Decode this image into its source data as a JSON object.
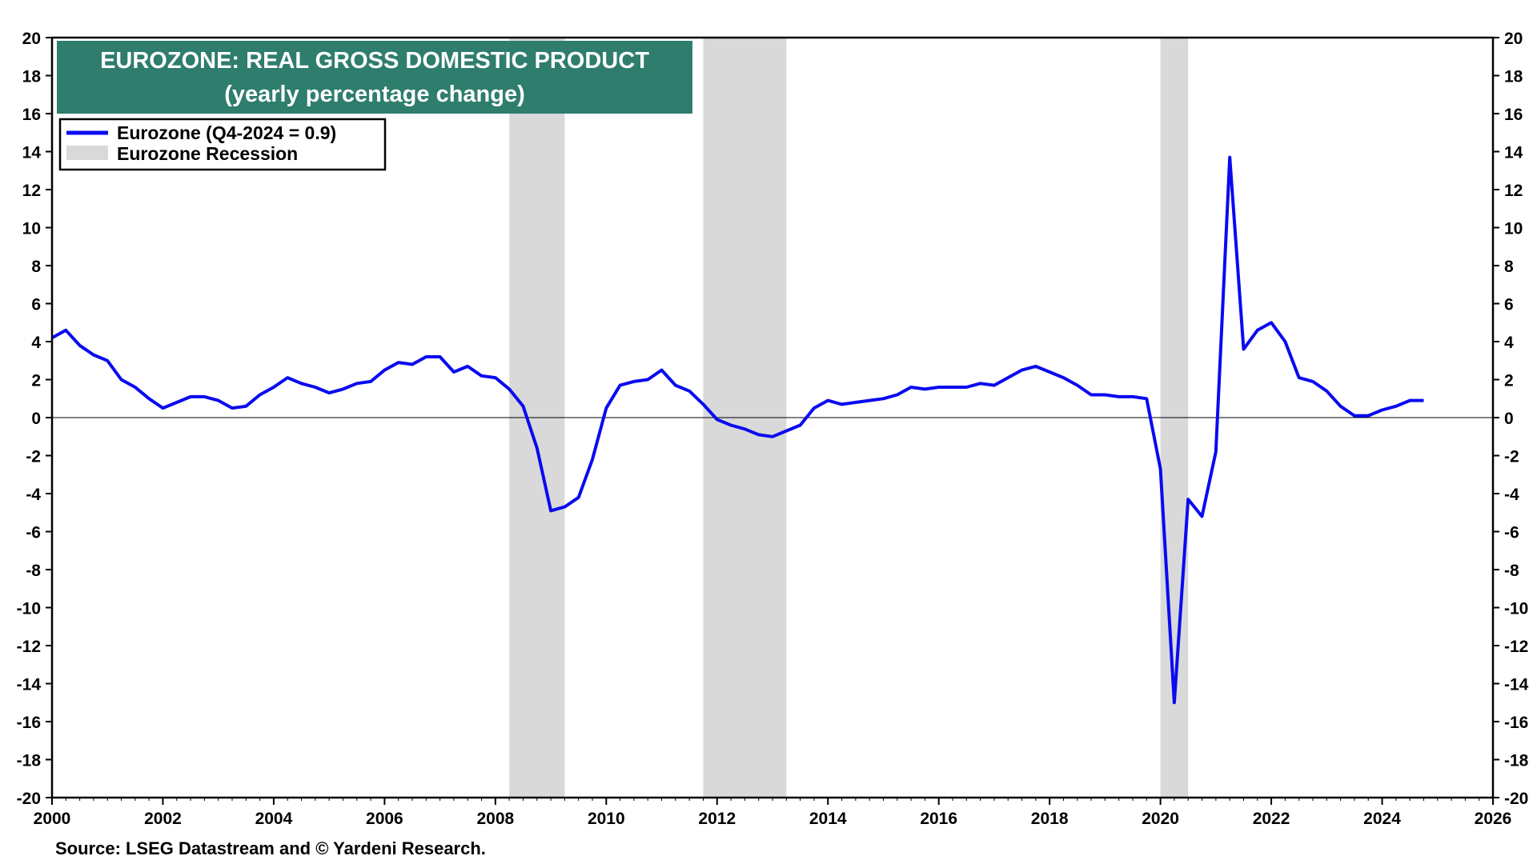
{
  "chart_data": {
    "type": "line",
    "title": "EUROZONE: REAL GROSS DOMESTIC PRODUCT",
    "subtitle": "(yearly percentage change)",
    "source": "Source: LSEG Datastream and © Yardeni Research.",
    "xlim": [
      2000,
      2026
    ],
    "ylim": [
      -20,
      20
    ],
    "x_ticks": [
      2000,
      2002,
      2004,
      2006,
      2008,
      2010,
      2012,
      2014,
      2016,
      2018,
      2020,
      2022,
      2024,
      2026
    ],
    "y_ticks": [
      -20,
      -18,
      -16,
      -14,
      -12,
      -10,
      -8,
      -6,
      -4,
      -2,
      0,
      2,
      4,
      6,
      8,
      10,
      12,
      14,
      16,
      18,
      20
    ],
    "zero_line": true,
    "grid": false,
    "legend": {
      "placement": "top-left",
      "entries": [
        {
          "label": "Eurozone (Q4-2024 = 0.9)",
          "kind": "line",
          "color": "#0a0af0"
        },
        {
          "label": "Eurozone Recession",
          "kind": "band",
          "color": "#d9d9d9"
        }
      ]
    },
    "colors": {
      "series": "#0a0af0",
      "recession": "#d9d9d9",
      "title_bg": "#2e7d6d",
      "title_text": "#ffffff"
    },
    "recessions": [
      {
        "start": 2008.25,
        "end": 2009.25
      },
      {
        "start": 2011.75,
        "end": 2013.25
      },
      {
        "start": 2020.0,
        "end": 2020.5
      }
    ],
    "series": [
      {
        "name": "Eurozone (Q4-2024 = 0.9)",
        "x": [
          2000.0,
          2000.25,
          2000.5,
          2000.75,
          2001.0,
          2001.25,
          2001.5,
          2001.75,
          2002.0,
          2002.25,
          2002.5,
          2002.75,
          2003.0,
          2003.25,
          2003.5,
          2003.75,
          2004.0,
          2004.25,
          2004.5,
          2004.75,
          2005.0,
          2005.25,
          2005.5,
          2005.75,
          2006.0,
          2006.25,
          2006.5,
          2006.75,
          2007.0,
          2007.25,
          2007.5,
          2007.75,
          2008.0,
          2008.25,
          2008.5,
          2008.75,
          2009.0,
          2009.25,
          2009.5,
          2009.75,
          2010.0,
          2010.25,
          2010.5,
          2010.75,
          2011.0,
          2011.25,
          2011.5,
          2011.75,
          2012.0,
          2012.25,
          2012.5,
          2012.75,
          2013.0,
          2013.25,
          2013.5,
          2013.75,
          2014.0,
          2014.25,
          2014.5,
          2014.75,
          2015.0,
          2015.25,
          2015.5,
          2015.75,
          2016.0,
          2016.25,
          2016.5,
          2016.75,
          2017.0,
          2017.25,
          2017.5,
          2017.75,
          2018.0,
          2018.25,
          2018.5,
          2018.75,
          2019.0,
          2019.25,
          2019.5,
          2019.75,
          2020.0,
          2020.25,
          2020.5,
          2020.75,
          2021.0,
          2021.25,
          2021.5,
          2021.75,
          2022.0,
          2022.25,
          2022.5,
          2022.75,
          2023.0,
          2023.25,
          2023.5,
          2023.75,
          2024.0,
          2024.25,
          2024.5,
          2024.75
        ],
        "y": [
          4.2,
          4.6,
          3.8,
          3.3,
          3.0,
          2.0,
          1.6,
          1.0,
          0.5,
          0.8,
          1.1,
          1.1,
          0.9,
          0.5,
          0.6,
          1.2,
          1.6,
          2.1,
          1.8,
          1.6,
          1.3,
          1.5,
          1.8,
          1.9,
          2.5,
          2.9,
          2.8,
          3.2,
          3.2,
          2.4,
          2.7,
          2.2,
          2.1,
          1.5,
          0.6,
          -1.6,
          -4.9,
          -4.7,
          -4.2,
          -2.2,
          0.5,
          1.7,
          1.9,
          2.0,
          2.5,
          1.7,
          1.4,
          0.7,
          -0.1,
          -0.4,
          -0.6,
          -0.9,
          -1.0,
          -0.7,
          -0.4,
          0.5,
          0.9,
          0.7,
          0.8,
          0.9,
          1.0,
          1.2,
          1.6,
          1.5,
          1.6,
          1.6,
          1.6,
          1.8,
          1.7,
          2.1,
          2.5,
          2.7,
          2.4,
          2.1,
          1.7,
          1.2,
          1.2,
          1.1,
          1.1,
          1.0,
          -2.7,
          -15.0,
          -4.3,
          -5.2,
          -1.8,
          13.7,
          3.6,
          4.6,
          5.0,
          4.0,
          2.1,
          1.9,
          1.4,
          0.6,
          0.1,
          0.1,
          0.4,
          0.6,
          0.9,
          0.9
        ]
      }
    ]
  }
}
